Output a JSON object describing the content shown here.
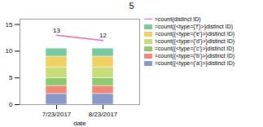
{
  "chart_data": {
    "type": "bar",
    "title": "5",
    "xlabel": "date",
    "categories": [
      "7/23/2017",
      "8/23/2017"
    ],
    "stacked": true,
    "series": [
      {
        "name": "=count({<type={'a'}>}distinct ID)",
        "color": "#8898c8",
        "values": [
          2.0,
          2.0
        ]
      },
      {
        "name": "=count({<type={'b'}>}distinct ID)",
        "color": "#f08878",
        "values": [
          1.5,
          1.5
        ]
      },
      {
        "name": "=count({<type={'c'}>}distinct ID)",
        "color": "#90c870",
        "values": [
          1.5,
          1.5
        ]
      },
      {
        "name": "=count({<type={'d'}>}distinct ID)",
        "color": "#c8dc78",
        "values": [
          2.0,
          2.0
        ]
      },
      {
        "name": "=count({<type={'e'}>}distinct ID)",
        "color": "#f0d060",
        "values": [
          2.0,
          2.0
        ]
      },
      {
        "name": "=count({<type={'f'}>}distinct ID)",
        "color": "#78c8a0",
        "values": [
          1.5,
          1.5
        ]
      },
      {
        "name": "=count(distinct ID)",
        "type": "line",
        "color": "#e868a8",
        "values": [
          13,
          12
        ],
        "data_labels": true
      }
    ],
    "ylim": [
      0,
      16
    ],
    "yticks": [
      0,
      5,
      10,
      15
    ],
    "grid": false,
    "legend": "upper right"
  }
}
